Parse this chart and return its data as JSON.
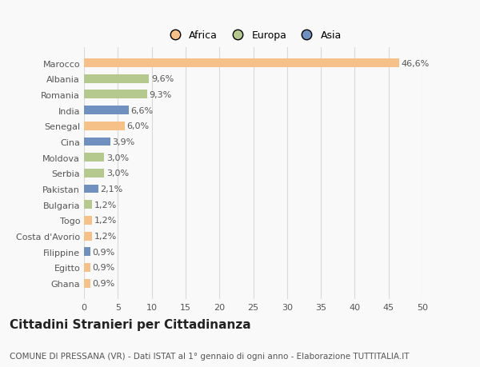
{
  "countries": [
    "Marocco",
    "Albania",
    "Romania",
    "India",
    "Senegal",
    "Cina",
    "Moldova",
    "Serbia",
    "Pakistan",
    "Bulgaria",
    "Togo",
    "Costa d'Avorio",
    "Filippine",
    "Egitto",
    "Ghana"
  ],
  "values": [
    46.6,
    9.6,
    9.3,
    6.6,
    6.0,
    3.9,
    3.0,
    3.0,
    2.1,
    1.2,
    1.2,
    1.2,
    0.9,
    0.9,
    0.9
  ],
  "labels": [
    "46,6%",
    "9,6%",
    "9,3%",
    "6,6%",
    "6,0%",
    "3,9%",
    "3,0%",
    "3,0%",
    "2,1%",
    "1,2%",
    "1,2%",
    "1,2%",
    "0,9%",
    "0,9%",
    "0,9%"
  ],
  "colors": [
    "#f5c189",
    "#b5c98e",
    "#b5c98e",
    "#7090bf",
    "#f5c189",
    "#7090bf",
    "#b5c98e",
    "#b5c98e",
    "#7090bf",
    "#b5c98e",
    "#f5c189",
    "#f5c189",
    "#7090bf",
    "#f5c189",
    "#f5c189"
  ],
  "legend_labels": [
    "Africa",
    "Europa",
    "Asia"
  ],
  "legend_colors": [
    "#f5c189",
    "#b5c98e",
    "#7090bf"
  ],
  "title": "Cittadini Stranieri per Cittadinanza",
  "subtitle": "COMUNE DI PRESSANA (VR) - Dati ISTAT al 1° gennaio di ogni anno - Elaborazione TUTTITALIA.IT",
  "xlim": [
    0,
    50
  ],
  "xticks": [
    0,
    5,
    10,
    15,
    20,
    25,
    30,
    35,
    40,
    45,
    50
  ],
  "bg_color": "#f9f9f9",
  "grid_color": "#d8d8d8",
  "bar_height": 0.55,
  "label_fontsize": 8,
  "tick_fontsize": 8,
  "title_fontsize": 11,
  "subtitle_fontsize": 7.5
}
